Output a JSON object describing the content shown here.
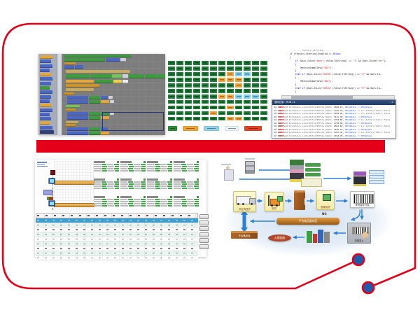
{
  "frame": {
    "border_color": "#e50019",
    "dot_color": "#1b5cad"
  },
  "divider": {
    "color": "#e50019"
  },
  "blockly": {
    "palette": [
      [
        "og",
        18
      ],
      [
        "bl",
        16
      ],
      [
        "bl",
        18
      ],
      [
        "bl",
        14
      ],
      [
        "og",
        16
      ],
      [
        "bl",
        18
      ],
      [
        "bl",
        16
      ],
      [
        "gn",
        14
      ],
      [
        "bl",
        18
      ],
      [
        "bl",
        16
      ],
      [
        "bl",
        14
      ],
      [
        "og",
        16
      ],
      [
        "bl",
        18
      ],
      [
        "bl",
        14
      ],
      [
        "bl",
        16
      ],
      [
        "og",
        14
      ],
      [
        "bl",
        18
      ],
      [
        "nv",
        20
      ]
    ],
    "rows": [
      {
        "l": 4,
        "t": 1,
        "s": [
          [
            "gn",
            96,
            4
          ]
        ]
      },
      {
        "l": 4,
        "t": 6,
        "s": [
          [
            "gn",
            58
          ],
          [
            "bl",
            20
          ],
          [
            "gy",
            8
          ]
        ]
      },
      {
        "l": 4,
        "t": 12,
        "s": [
          [
            "oh",
            16,
            4
          ]
        ]
      },
      {
        "l": 4,
        "t": 16,
        "s": [
          [
            "bl",
            14
          ],
          [
            "bl",
            12
          ]
        ]
      },
      {
        "l": 6,
        "t": 23,
        "s": [
          [
            "tn",
            92
          ]
        ]
      },
      {
        "l": 6,
        "t": 29,
        "s": [
          [
            "gn",
            34,
            6
          ],
          [
            "gn",
            30,
            6
          ],
          [
            "lg",
            14,
            6
          ],
          [
            "gy",
            8,
            6
          ],
          [
            "gn",
            22,
            6
          ],
          [
            "gn",
            18,
            6
          ],
          [
            "gn",
            12,
            6
          ]
        ]
      },
      {
        "l": 6,
        "t": 37,
        "s": [
          [
            "og",
            40
          ],
          [
            "gn",
            26
          ],
          [
            "yl",
            12
          ],
          [
            "wh",
            8
          ]
        ]
      },
      {
        "l": 6,
        "t": 43,
        "s": [
          [
            "oh",
            48
          ]
        ]
      },
      {
        "l": 6,
        "t": 49,
        "s": [
          [
            "tn",
            40
          ]
        ]
      },
      {
        "l": 4,
        "t": 55,
        "s": [
          [
            "oh",
            14,
            4
          ]
        ]
      },
      {
        "l": 8,
        "t": 60,
        "s": [
          [
            "bl",
            30
          ],
          [
            "gn",
            16
          ],
          [
            "bl",
            10
          ],
          [
            "gy",
            6
          ]
        ]
      },
      {
        "l": 8,
        "t": 66,
        "s": [
          [
            "bl",
            30
          ],
          [
            "gn",
            16
          ],
          [
            "og",
            12
          ],
          [
            "gy",
            6
          ]
        ]
      },
      {
        "l": 6,
        "t": 73,
        "s": [
          [
            "lg",
            20,
            4
          ]
        ]
      },
      {
        "l": 6,
        "t": 78,
        "s": [
          [
            "oh",
            14,
            4
          ]
        ]
      },
      {
        "l": 8,
        "t": 83,
        "s": [
          [
            "bl",
            30
          ],
          [
            "gn",
            16
          ],
          [
            "gn",
            12
          ],
          [
            "gy",
            6
          ]
        ]
      },
      {
        "l": 8,
        "t": 89,
        "s": [
          [
            "bl",
            30
          ],
          [
            "gn",
            16
          ],
          [
            "og",
            12
          ]
        ]
      },
      {
        "l": 6,
        "t": 96,
        "s": [
          [
            "tn",
            18,
            4
          ]
        ]
      },
      {
        "l": 6,
        "t": 100,
        "s": [
          [
            "oh",
            14,
            4
          ]
        ]
      },
      {
        "l": 8,
        "t": 105,
        "s": [
          [
            "bl",
            30
          ],
          [
            "gn",
            16
          ],
          [
            "bl",
            10
          ]
        ]
      },
      {
        "l": 8,
        "t": 111,
        "s": [
          [
            "bl",
            30
          ],
          [
            "gn",
            16
          ],
          [
            "og",
            12
          ]
        ]
      }
    ],
    "selection": {
      "l": 58,
      "t": 83,
      "w": 86,
      "h": 25
    }
  },
  "status_board": {
    "grid": [
      "gggggggggggg",
      "gggggggggggg",
      "gggggggoccgg",
      "ggggggoooggg",
      "ggggggggoggg",
      "gggggggggggg",
      "ggggggoocccg",
      "gggggggggggg",
      "gggggggogggg",
      "gggggogggggg",
      "gggggggooggg"
    ],
    "legend": [
      [
        "#2f8b3c",
        13
      ],
      [
        "#f0a53a",
        22
      ],
      [
        "#8fd4e8",
        22
      ],
      [
        "#e8f3fa",
        20
      ],
      [
        "#e34326",
        25
      ]
    ]
  },
  "code_editor": {
    "lines": [
      [
        [
          "cm",
          "' ------ factory_starting ------"
        ]
      ],
      [
        [
          "kw",
          "if "
        ],
        [
          "df",
          "(factory_starting.Enabled == "
        ],
        [
          "kw",
          "false"
        ],
        [
          "df",
          ")"
        ]
      ],
      [
        [
          "df",
          "{"
        ]
      ],
      [
        [
          "df",
          "    "
        ],
        [
          "kw",
          "if "
        ],
        [
          "df",
          "(Opcs.InLed("
        ],
        [
          "st",
          "\"sens\""
        ],
        [
          "df",
          ").Value.ToString() == "
        ],
        [
          "st",
          "\"1\""
        ],
        [
          "df",
          " && Opcs.InLed("
        ],
        [
          "st",
          "\"err\""
        ],
        [
          "df",
          ")…"
        ]
      ],
      [
        [
          "df",
          "    {"
        ]
      ],
      [
        [
          "df",
          "        MachineLampFlash("
        ],
        [
          "st",
          "\"011\""
        ],
        [
          "df",
          ");"
        ]
      ],
      [
        [
          "df",
          "    }"
        ]
      ],
      [
        [
          "df",
          "    "
        ],
        [
          "kw",
          "else if "
        ],
        [
          "df",
          "(Opcs.InLin("
        ],
        [
          "st",
          "\"Selec\""
        ],
        [
          "df",
          ").Value.ToString() == "
        ],
        [
          "st",
          "\"2\""
        ],
        [
          "df",
          " && Opcs.In…"
        ]
      ],
      [
        [
          "df",
          "    {"
        ]
      ],
      [
        [
          "df",
          "        MachineLampFlash("
        ],
        [
          "st",
          "\"011\""
        ],
        [
          "df",
          ");"
        ]
      ],
      [
        [
          "df",
          "    }"
        ]
      ],
      [
        [
          "df",
          "    "
        ],
        [
          "kw",
          "else if "
        ],
        [
          "df",
          "(Opcs.InLin("
        ],
        [
          "st",
          "\"Selec\""
        ],
        [
          "df",
          ").Value.ToString() == "
        ],
        [
          "st",
          "\"3\""
        ],
        [
          "df",
          " && Opcs.In…"
        ]
      ],
      [
        [
          "df",
          "    {"
        ]
      ]
    ]
  },
  "log_window": {
    "title": "通讯记录 - RUN 11",
    "title_right": "– ×",
    "rows": [
      [
        [
          "dk",
          "4① "
        ],
        [
          "rd",
          "RDBUF"
        ],
        [
          "gy",
          "ws8.RcvDataSrv.scpts/RCTs2/RTFsts_Rdata: "
        ],
        [
          "dk",
          "2692.19, "
        ],
        [
          "lb",
          "OPCUpdate"
        ],
        [
          "gy",
          " := "
        ],
        [
          "lb",
          "OPCUpdate"
        ]
      ],
      [
        [
          "dk",
          "4① "
        ],
        [
          "rd",
          "RDBUF"
        ],
        [
          "gy",
          "ws8.RcvDataSrv.scpts/RCTs2/RTFsts_Rdata: "
        ],
        [
          "dk",
          "2781.78, "
        ],
        [
          "lb",
          "OPCUpdate"
        ],
        [
          "gy",
          " := Srv.InfoSrv/TwSrvr.TwInv"
        ]
      ],
      [
        [
          "dk",
          "4① "
        ],
        [
          "rd",
          "RDBUF"
        ],
        [
          "gy",
          "ws8.RcvDataSrv.scpts/RCTs2/RTFsts_Rdata: "
        ],
        [
          "dk",
          "2878.94, "
        ],
        [
          "lb",
          "OPCUpdate"
        ],
        [
          "gy",
          " := Srv.InfoSrv/TwSrvr.TwInv"
        ]
      ],
      [
        [
          "dk",
          "4① "
        ],
        [
          "rd",
          "RDBUF"
        ],
        [
          "gy",
          "ws8.RcvDataSrv.scpts/RCTs2/RTFsts_Rdata: "
        ],
        [
          "dk",
          "3121.39, "
        ],
        [
          "lb",
          "OPCUpdate"
        ],
        [
          "gy",
          " := "
        ],
        [
          "lb",
          "OPCUpdate"
        ]
      ],
      [
        [
          "dk",
          "4① "
        ],
        [
          "rd",
          "RDBUF"
        ],
        [
          "gy",
          "ws8.RcvDataSrv.scpts/RCTs2/RTFsts_Rdata: "
        ],
        [
          "dk",
          "2794.84, "
        ],
        [
          "lb",
          "OPCUpdate"
        ],
        [
          "gy",
          " := Srv.InfoSrv/TwSrvr.TwInv"
        ]
      ],
      [
        [
          "dk",
          "4① "
        ],
        [
          "rd",
          "RDBUF"
        ],
        [
          "gy",
          "ws8.RcvDataSrv.scpts/RCTs2/RTFsts_Rdata: "
        ],
        [
          "dk",
          "2749.98, "
        ],
        [
          "lb",
          "OPCUpdate"
        ],
        [
          "gy",
          " := "
        ],
        [
          "lb",
          "OPCUpdate"
        ]
      ],
      [
        [
          "dk",
          "4① "
        ],
        [
          "rd",
          "RDBUF"
        ],
        [
          "gy",
          "ws8.RcvDataSrv.scpts/RCTs2/RTFsts_Rdata: "
        ],
        [
          "dk",
          "2651.84, "
        ],
        [
          "lb",
          "OPCUpdate"
        ],
        [
          "gy",
          " := Srv.InfoSrv/TwSrvr.TwInv"
        ]
      ],
      [
        [
          "dk",
          "4① "
        ],
        [
          "rd",
          "RDBUF"
        ],
        [
          "gy",
          "ws8.RcvDataSrv.scpts/RCTs2/RTFsts_Rdata: "
        ],
        [
          "dk",
          "2879.19, "
        ],
        [
          "lb",
          "OPCUpdate"
        ],
        [
          "gy",
          " := "
        ],
        [
          "lb",
          "OPCUpdate"
        ]
      ],
      [
        [
          "dk",
          "4① "
        ],
        [
          "rd",
          "RDBUF"
        ],
        [
          "gy",
          "ws8.RcvDataSrv.scpts/RCTs2/RTFsts_Rdata: "
        ],
        [
          "dk",
          "2476.34, "
        ],
        [
          "lb",
          "OPCUpdate"
        ],
        [
          "gy",
          " := Srv.InfoSrv/TwSrvr.TwInv"
        ]
      ],
      [
        [
          "dk",
          "4① "
        ],
        [
          "rd",
          "RDBUF"
        ],
        [
          "gy",
          "ws8.RcvDataSrv.scpts/RCTs2/RTFsts_Rdata: "
        ],
        [
          "dk",
          "2912.28, "
        ],
        [
          "lb",
          "OPCUpdate"
        ],
        [
          "gy",
          " := "
        ],
        [
          "lb",
          "OPCUpdate"
        ]
      ]
    ]
  },
  "hmi": {
    "panels": {
      "rows": 3,
      "cols": 4,
      "lines": 4
    },
    "table": {
      "data_rows": 9,
      "selected_row": 0,
      "side_buttons": 6
    }
  },
  "flowchart": {
    "labels": {
      "supplier_delivery": "供应商送货",
      "unload": "卸货",
      "staging": "待检区",
      "image_inspect": "图像验货",
      "barcode_scan": "条码智能扫描",
      "scan_entry": "扫描录入",
      "inbound_done": "入库完成",
      "ng": "NG",
      "ng_bar": "不合格品暂存区",
      "ng_store": "不合格品库"
    }
  }
}
